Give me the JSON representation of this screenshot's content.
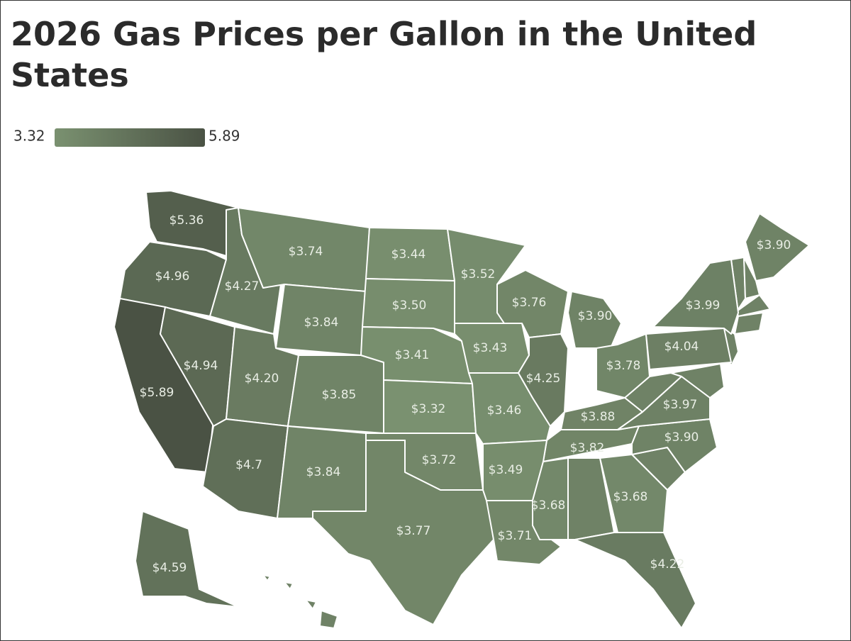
{
  "chart_data": {
    "type": "choropleth",
    "title": "2026 Gas Prices per Gallon in the United States",
    "color_scale": {
      "min": 3.32,
      "max": 5.89,
      "colors": [
        "#7a9170",
        "#4a5244"
      ]
    },
    "values": [
      5.36,
      4.96,
      5.89,
      4.27,
      4.94,
      3.74,
      3.84,
      4.2,
      4.7,
      3.85,
      3.84,
      3.44,
      3.5,
      3.41,
      3.32,
      3.72,
      3.77,
      3.52,
      3.43,
      3.46,
      3.76,
      4.25,
      3.9,
      3.78,
      3.88,
      3.82,
      3.49,
      3.71,
      3.68,
      3.68,
      4.22,
      3.9,
      3.97,
      4.04,
      3.99,
      3.9,
      4.59
    ],
    "value_labels": [
      "$5.36",
      "$4.96",
      "$5.89",
      "$4.27",
      "$4.94",
      "$3.74",
      "$3.84",
      "$4.20",
      "$4.7",
      "$3.85",
      "$3.84",
      "$3.44",
      "$3.50",
      "$3.41",
      "$3.32",
      "$3.72",
      "$3.77",
      "$3.52",
      "$3.43",
      "$3.46",
      "$3.76",
      "$4.25",
      "$3.90",
      "$3.78",
      "$3.88",
      "$3.82",
      "$3.49",
      "$3.71",
      "$3.68",
      "$3.68",
      "$4.22",
      "$3.90",
      "$3.97",
      "$4.04",
      "$3.99",
      "$3.90",
      "$4.59"
    ]
  }
}
